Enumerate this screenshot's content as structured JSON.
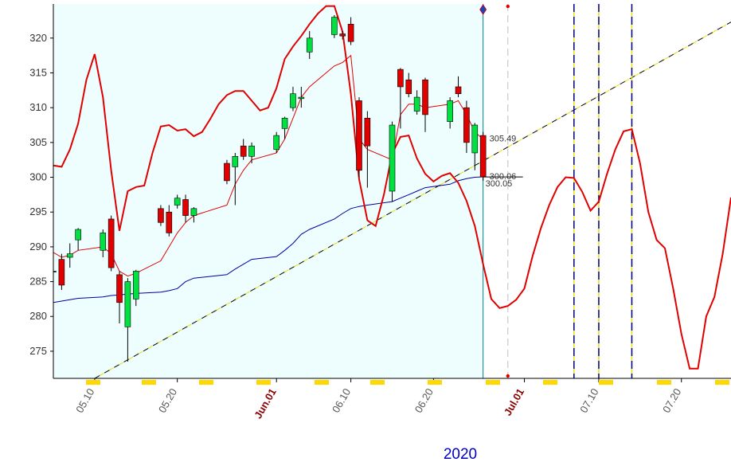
{
  "chart_data": {
    "type": "candlestick",
    "xlabel": "2020",
    "xlim": [
      "2020-05-05",
      "2020-07-26"
    ],
    "ylim": [
      271.1,
      324.9
    ],
    "yticks": [
      275,
      280,
      285,
      290,
      295,
      300,
      305,
      310,
      315,
      320
    ],
    "xticks": [
      {
        "value": "2020-05-10",
        "label": "05.10"
      },
      {
        "value": "2020-05-20",
        "label": "05.20"
      },
      {
        "value": "2020-06-01",
        "label": "Jun.01"
      },
      {
        "value": "2020-06-10",
        "label": "06.10"
      },
      {
        "value": "2020-06-20",
        "label": "06.20"
      },
      {
        "value": "2020-07-01",
        "label": "Jul.01"
      },
      {
        "value": "2020-07-10",
        "label": "07.10"
      },
      {
        "value": "2020-07-20",
        "label": "07.20"
      }
    ],
    "shade": {
      "to": "2020-06-26",
      "color": "#eefefe"
    },
    "candles": {
      "up_color": "#00e040",
      "down_color": "#e00000",
      "x": [
        "2020-05-05",
        "2020-05-06",
        "2020-05-07",
        "2020-05-08",
        "2020-05-11",
        "2020-05-12",
        "2020-05-13",
        "2020-05-14",
        "2020-05-15",
        "2020-05-18",
        "2020-05-19",
        "2020-05-20",
        "2020-05-21",
        "2020-05-22",
        "2020-05-26",
        "2020-05-27",
        "2020-05-28",
        "2020-05-29",
        "2020-06-01",
        "2020-06-02",
        "2020-06-03",
        "2020-06-04",
        "2020-06-05",
        "2020-06-08",
        "2020-06-09",
        "2020-06-10",
        "2020-06-11",
        "2020-06-12",
        "2020-06-15",
        "2020-06-16",
        "2020-06-17",
        "2020-06-18",
        "2020-06-19",
        "2020-06-22",
        "2020-06-23",
        "2020-06-24",
        "2020-06-25",
        "2020-06-26"
      ],
      "open": [
        286.5,
        288.2,
        288.5,
        291,
        289.5,
        294,
        286,
        278.5,
        282.5,
        295.5,
        295,
        296,
        296.8,
        294.5,
        302,
        301.5,
        304.5,
        303,
        304,
        307,
        310,
        311.3,
        318,
        320.5,
        320.6,
        322,
        311,
        308.5,
        298,
        315.5,
        314,
        309.5,
        314,
        308,
        313,
        310,
        303.5,
        306
      ],
      "high": [
        287,
        289,
        290.5,
        292.7,
        292.5,
        294.5,
        286.5,
        285.5,
        286.7,
        296,
        296,
        297.5,
        297.5,
        295.7,
        302.5,
        303.5,
        305.5,
        305,
        306.5,
        308.7,
        313,
        313,
        321,
        323.3,
        321,
        323,
        311.5,
        309.5,
        308,
        315.7,
        315,
        312.5,
        314.3,
        311.5,
        314.5,
        311,
        307.8,
        306.5
      ],
      "low": [
        286.2,
        283.8,
        287,
        289.5,
        288.5,
        286.5,
        279,
        273.5,
        281.5,
        293,
        291.5,
        295.5,
        293.5,
        293.5,
        299,
        296,
        302.5,
        302,
        303.5,
        305.5,
        309.5,
        310,
        317,
        320,
        319.8,
        319,
        300,
        298.5,
        296.5,
        307,
        311.5,
        309,
        306.5,
        307,
        311.5,
        303.5,
        301,
        299.5
      ],
      "close": [
        286.5,
        284.5,
        289,
        292.5,
        292,
        287,
        282,
        285,
        286.5,
        293.5,
        292,
        297,
        294.5,
        295.5,
        299.5,
        303,
        303,
        304.5,
        306,
        308.5,
        312,
        311.5,
        320,
        323,
        320.3,
        319.5,
        301,
        304.5,
        307.5,
        313,
        312,
        311.5,
        309,
        311,
        312,
        305,
        307.5,
        300.05
      ]
    },
    "series": [
      {
        "color": "#e00000",
        "width": 1,
        "last_label": true,
        "x": [
          "2020-05-05",
          "2020-05-06",
          "2020-05-07",
          "2020-05-08",
          "2020-05-11",
          "2020-05-12",
          "2020-05-13",
          "2020-05-14",
          "2020-05-15",
          "2020-05-18",
          "2020-05-19",
          "2020-05-20",
          "2020-05-21",
          "2020-05-22",
          "2020-05-26",
          "2020-05-27",
          "2020-05-28",
          "2020-05-29",
          "2020-06-01",
          "2020-06-02",
          "2020-06-03",
          "2020-06-04",
          "2020-06-05",
          "2020-06-08",
          "2020-06-09",
          "2020-06-10",
          "2020-06-11",
          "2020-06-12",
          "2020-06-15",
          "2020-06-16",
          "2020-06-17",
          "2020-06-18",
          "2020-06-19",
          "2020-06-22",
          "2020-06-23",
          "2020-06-24",
          "2020-06-25",
          "2020-06-26"
        ],
        "values": [
          289.2,
          288.5,
          288.8,
          289.5,
          290,
          289,
          286.5,
          285.8,
          286.2,
          288,
          290,
          292,
          293.5,
          294.5,
          296,
          299,
          301,
          302.5,
          303.5,
          305.5,
          308.5,
          311.5,
          313,
          316,
          316.5,
          317.5,
          305.5,
          304,
          302.5,
          309,
          310.5,
          310.5,
          310,
          310.5,
          311,
          309,
          306.5,
          305.49
        ]
      },
      {
        "color": "#0000a0",
        "width": 1,
        "last_label": true,
        "x": [
          "2020-05-05",
          "2020-05-06",
          "2020-05-07",
          "2020-05-08",
          "2020-05-11",
          "2020-05-12",
          "2020-05-13",
          "2020-05-14",
          "2020-05-15",
          "2020-05-18",
          "2020-05-19",
          "2020-05-20",
          "2020-05-21",
          "2020-05-22",
          "2020-05-26",
          "2020-05-27",
          "2020-05-28",
          "2020-05-29",
          "2020-06-01",
          "2020-06-02",
          "2020-06-03",
          "2020-06-04",
          "2020-06-05",
          "2020-06-08",
          "2020-06-09",
          "2020-06-10",
          "2020-06-11",
          "2020-06-12",
          "2020-06-15",
          "2020-06-16",
          "2020-06-17",
          "2020-06-18",
          "2020-06-19",
          "2020-06-22",
          "2020-06-23",
          "2020-06-24",
          "2020-06-25",
          "2020-06-26"
        ],
        "values": [
          282,
          282.2,
          282.4,
          282.6,
          282.8,
          283,
          283.1,
          283.2,
          283.3,
          283.5,
          283.7,
          284,
          285,
          285.5,
          286,
          286.8,
          287.5,
          288.2,
          288.6,
          289.5,
          290.5,
          291.8,
          292.5,
          294,
          294.8,
          295.5,
          295.8,
          296,
          296.5,
          297,
          297.5,
          298,
          298.5,
          299,
          299.5,
          299.8,
          300,
          300.06
        ]
      },
      {
        "color": "#e00000",
        "width": 2,
        "last_label": false,
        "x": [
          "2020-05-05",
          "2020-05-06",
          "2020-05-07",
          "2020-05-08",
          "2020-05-09",
          "2020-05-10",
          "2020-05-11",
          "2020-05-12",
          "2020-05-13",
          "2020-05-14",
          "2020-05-15",
          "2020-05-16",
          "2020-05-17",
          "2020-05-18",
          "2020-05-19",
          "2020-05-20",
          "2020-05-21",
          "2020-05-22",
          "2020-05-23",
          "2020-05-24",
          "2020-05-25",
          "2020-05-26",
          "2020-05-27",
          "2020-05-28",
          "2020-05-29",
          "2020-05-30",
          "2020-05-31",
          "2020-06-01",
          "2020-06-02",
          "2020-06-03",
          "2020-06-04",
          "2020-06-05",
          "2020-06-06",
          "2020-06-07",
          "2020-06-08",
          "2020-06-09",
          "2020-06-10",
          "2020-06-11",
          "2020-06-12",
          "2020-06-13",
          "2020-06-14",
          "2020-06-15",
          "2020-06-16",
          "2020-06-17",
          "2020-06-18",
          "2020-06-19",
          "2020-06-20",
          "2020-06-21",
          "2020-06-22",
          "2020-06-23",
          "2020-06-24",
          "2020-06-25",
          "2020-06-26",
          "2020-06-27",
          "2020-06-28",
          "2020-06-29",
          "2020-06-30",
          "2020-07-01",
          "2020-07-02",
          "2020-07-03",
          "2020-07-04",
          "2020-07-05",
          "2020-07-06",
          "2020-07-07",
          "2020-07-08",
          "2020-07-09",
          "2020-07-10",
          "2020-07-11",
          "2020-07-12",
          "2020-07-13",
          "2020-07-14",
          "2020-07-15",
          "2020-07-16",
          "2020-07-17",
          "2020-07-18",
          "2020-07-19",
          "2020-07-20",
          "2020-07-21",
          "2020-07-22",
          "2020-07-23",
          "2020-07-24",
          "2020-07-25",
          "2020-07-26"
        ],
        "values": [
          301.7,
          301.5,
          304,
          307.7,
          314,
          317.7,
          311.5,
          301,
          292.3,
          298,
          298.6,
          298.8,
          303.5,
          307.3,
          307.5,
          306.7,
          306.9,
          305.9,
          306.5,
          308.4,
          310.5,
          311.8,
          312.4,
          312.4,
          311,
          309.6,
          310,
          312.8,
          317,
          318.8,
          320.3,
          322,
          323.5,
          324.6,
          324.6,
          320.9,
          312,
          299.7,
          293.8,
          293,
          297.5,
          303.4,
          305.8,
          306,
          302.7,
          300.5,
          299.4,
          300.2,
          300.6,
          299.2,
          296.6,
          293,
          287.5,
          282.5,
          281.2,
          281.5,
          282.4,
          284,
          288.7,
          292.7,
          296,
          298.6,
          300,
          299.9,
          297.9,
          295.2,
          296.5,
          300.5,
          304,
          306.6,
          306.9,
          302,
          295,
          291,
          289.8,
          284,
          277.5,
          272.5,
          272.5,
          280,
          282.8,
          289,
          297.1
        ]
      }
    ],
    "trendline": {
      "x": [
        "2020-05-10",
        "2020-07-26"
      ],
      "values": [
        271.1,
        322.3
      ]
    },
    "vlines": [
      {
        "x": "2020-06-26",
        "color": "#008080",
        "style": "solid"
      },
      {
        "x": "2020-06-29",
        "color": "#c0c0c0",
        "style": "dashed"
      },
      {
        "x": "2020-07-07",
        "color": "#0000a0",
        "style": "dashed-yellow"
      },
      {
        "x": "2020-07-10",
        "color": "#0000a0",
        "style": "dashed-yellow"
      },
      {
        "x": "2020-07-14",
        "color": "#0000a0",
        "style": "dashed-yellow"
      }
    ]
  }
}
